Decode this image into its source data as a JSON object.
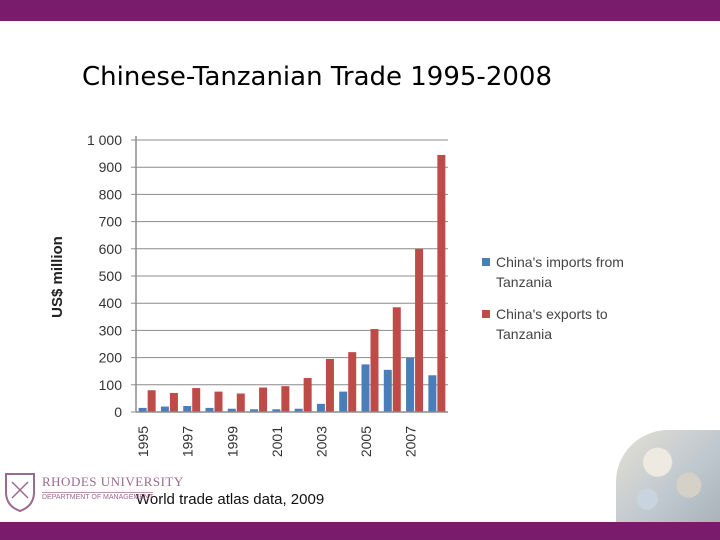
{
  "slide": {
    "title": "Chinese-Tanzanian Trade 1995-2008",
    "source": "World trade atlas data, 2009",
    "logo_name": "RHODES UNIVERSITY",
    "logo_dept": "DEPARTMENT OF MANAGEMENT"
  },
  "colors": {
    "bar_border": "#7a1c6c",
    "imports": "#4a7ebb",
    "exports": "#be4b48",
    "gridline": "#8c8c8c"
  },
  "chart_data": {
    "type": "bar",
    "categories": [
      "1995",
      "1996",
      "1997",
      "1998",
      "1999",
      "2000",
      "2001",
      "2002",
      "2003",
      "2004",
      "2005",
      "2006",
      "2007",
      "2008"
    ],
    "x_tick_labels": [
      "1995",
      "1997",
      "1999",
      "2001",
      "2003",
      "2005",
      "2007"
    ],
    "y_ticks": [
      "0",
      "100",
      "200",
      "300",
      "400",
      "500",
      "600",
      "700",
      "800",
      "900",
      "1 000"
    ],
    "ylabel": "US$ million",
    "ylim": [
      0,
      1000
    ],
    "grid": true,
    "legend_position": "right",
    "series": [
      {
        "name": "China's imports from Tanzania",
        "legend_lines": [
          "China's imports from",
          "Tanzania"
        ],
        "values": [
          15,
          20,
          22,
          15,
          12,
          10,
          10,
          12,
          30,
          75,
          175,
          155,
          200,
          135
        ]
      },
      {
        "name": "China's exports to Tanzania",
        "legend_lines": [
          "China's exports to",
          "Tanzania"
        ],
        "values": [
          80,
          70,
          88,
          75,
          68,
          90,
          95,
          125,
          195,
          220,
          305,
          385,
          600,
          945
        ]
      }
    ]
  }
}
